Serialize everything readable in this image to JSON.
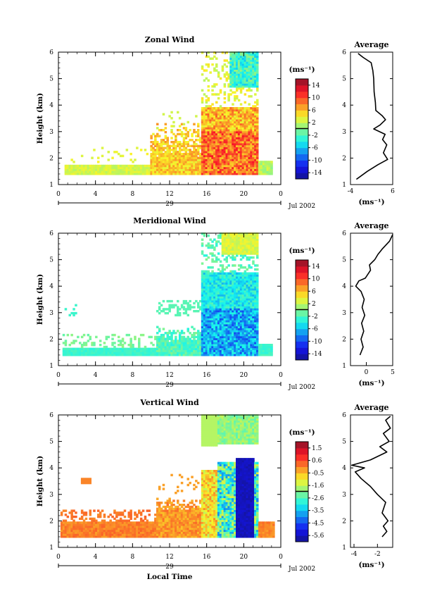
{
  "chart_data": [
    {
      "type": "heatmap",
      "title": "Zonal Wind",
      "ylabel": "Height (km)",
      "xlabel": "",
      "date_label": "29",
      "month_label": "Jul 2002",
      "x_ticks": [
        "0",
        "4",
        "8",
        "12",
        "16",
        "20",
        "0"
      ],
      "xlim": [
        0,
        24
      ],
      "ylim": [
        1,
        6
      ],
      "y_ticks": [
        "1",
        "2",
        "3",
        "4",
        "5",
        "6"
      ],
      "colorbar": {
        "unit": "(ms⁻¹)",
        "ticks": [
          "14",
          "10",
          "6",
          "2",
          "-2",
          "-6",
          "-10",
          "-14"
        ],
        "range": [
          -16,
          16
        ]
      },
      "profile": {
        "title": "Average",
        "xlabel": "(ms⁻¹)",
        "x_ticks": [
          "-4",
          "6"
        ],
        "xlim": [
          -4,
          6
        ],
        "y_ticks": [
          "1",
          "2",
          "3",
          "4",
          "5",
          "6"
        ],
        "points": [
          [
            -2.6,
            1.2
          ],
          [
            0,
            1.5
          ],
          [
            2.5,
            1.75
          ],
          [
            4.8,
            1.95
          ],
          [
            3.8,
            2.2
          ],
          [
            4.6,
            2.5
          ],
          [
            3.6,
            2.7
          ],
          [
            4.2,
            2.9
          ],
          [
            1.5,
            3.1
          ],
          [
            3.0,
            3.25
          ],
          [
            4.3,
            3.45
          ],
          [
            3.5,
            3.6
          ],
          [
            2.0,
            3.8
          ],
          [
            1.9,
            4.1
          ],
          [
            1.6,
            4.5
          ],
          [
            1.5,
            5.0
          ],
          [
            1.3,
            5.3
          ],
          [
            0.9,
            5.6
          ],
          [
            -1.0,
            5.8
          ],
          [
            -2.2,
            5.95
          ]
        ]
      }
    },
    {
      "type": "heatmap",
      "title": "Meridional Wind",
      "ylabel": "Height (km)",
      "xlabel": "",
      "date_label": "29",
      "month_label": "Jul 2002",
      "x_ticks": [
        "0",
        "4",
        "8",
        "12",
        "16",
        "20",
        "0"
      ],
      "xlim": [
        0,
        24
      ],
      "ylim": [
        1,
        6
      ],
      "y_ticks": [
        "1",
        "2",
        "3",
        "4",
        "5",
        "6"
      ],
      "colorbar": {
        "unit": "(ms⁻¹)",
        "ticks": [
          "14",
          "10",
          "6",
          "2",
          "-2",
          "-6",
          "-10",
          "-14"
        ],
        "range": [
          -16,
          16
        ]
      },
      "profile": {
        "title": "Average",
        "xlabel": "(ms⁻¹)",
        "x_ticks": [
          "0",
          "5"
        ],
        "xlim": [
          -3,
          5
        ],
        "y_ticks": [
          "1",
          "2",
          "3",
          "4",
          "5",
          "6"
        ],
        "points": [
          [
            -1.2,
            1.4
          ],
          [
            -0.6,
            1.7
          ],
          [
            -1.0,
            2.0
          ],
          [
            -0.5,
            2.3
          ],
          [
            -0.9,
            2.6
          ],
          [
            -0.3,
            2.9
          ],
          [
            -0.8,
            3.2
          ],
          [
            -0.4,
            3.5
          ],
          [
            -1.0,
            3.8
          ],
          [
            -2.0,
            4.0
          ],
          [
            -1.4,
            4.2
          ],
          [
            -0.2,
            4.3
          ],
          [
            0.8,
            4.6
          ],
          [
            0.6,
            4.8
          ],
          [
            1.6,
            5.0
          ],
          [
            2.2,
            5.2
          ],
          [
            3.0,
            5.4
          ],
          [
            4.4,
            5.7
          ],
          [
            5.0,
            5.95
          ]
        ]
      }
    },
    {
      "type": "heatmap",
      "title": "Vertical Wind",
      "ylabel": "Height (km)",
      "xlabel": "Local Time",
      "date_label": "29",
      "month_label": "Jul 2002",
      "x_ticks": [
        "0",
        "4",
        "8",
        "12",
        "16",
        "20",
        "0"
      ],
      "xlim": [
        0,
        24
      ],
      "ylim": [
        1,
        6
      ],
      "y_ticks": [
        "1",
        "2",
        "3",
        "4",
        "5",
        "6"
      ],
      "colorbar": {
        "unit": "(ms⁻¹)",
        "ticks": [
          "1.5",
          "0.6",
          "-0.5",
          "-1.6",
          "-2.6",
          "-3.5",
          "-4.5",
          "-5.6"
        ],
        "range": [
          -6,
          2
        ]
      },
      "profile": {
        "title": "Average",
        "xlabel": "(ms⁻¹)",
        "x_ticks": [
          "-4",
          "-2"
        ],
        "xlim": [
          -4.3,
          -0.7
        ],
        "y_ticks": [
          "1",
          "2",
          "3",
          "4",
          "5",
          "6"
        ],
        "points": [
          [
            -1.6,
            1.4
          ],
          [
            -1.2,
            1.6
          ],
          [
            -1.5,
            1.8
          ],
          [
            -1.1,
            2.0
          ],
          [
            -1.6,
            2.3
          ],
          [
            -1.3,
            2.7
          ],
          [
            -2.0,
            3.0
          ],
          [
            -2.6,
            3.3
          ],
          [
            -3.4,
            3.6
          ],
          [
            -3.9,
            3.85
          ],
          [
            -3.1,
            4.0
          ],
          [
            -4.2,
            4.1
          ],
          [
            -2.6,
            4.3
          ],
          [
            -1.2,
            4.6
          ],
          [
            -1.8,
            4.8
          ],
          [
            -1.0,
            5.0
          ],
          [
            -1.5,
            5.3
          ],
          [
            -0.9,
            5.5
          ],
          [
            -1.3,
            5.8
          ],
          [
            -0.9,
            5.95
          ]
        ]
      }
    }
  ]
}
